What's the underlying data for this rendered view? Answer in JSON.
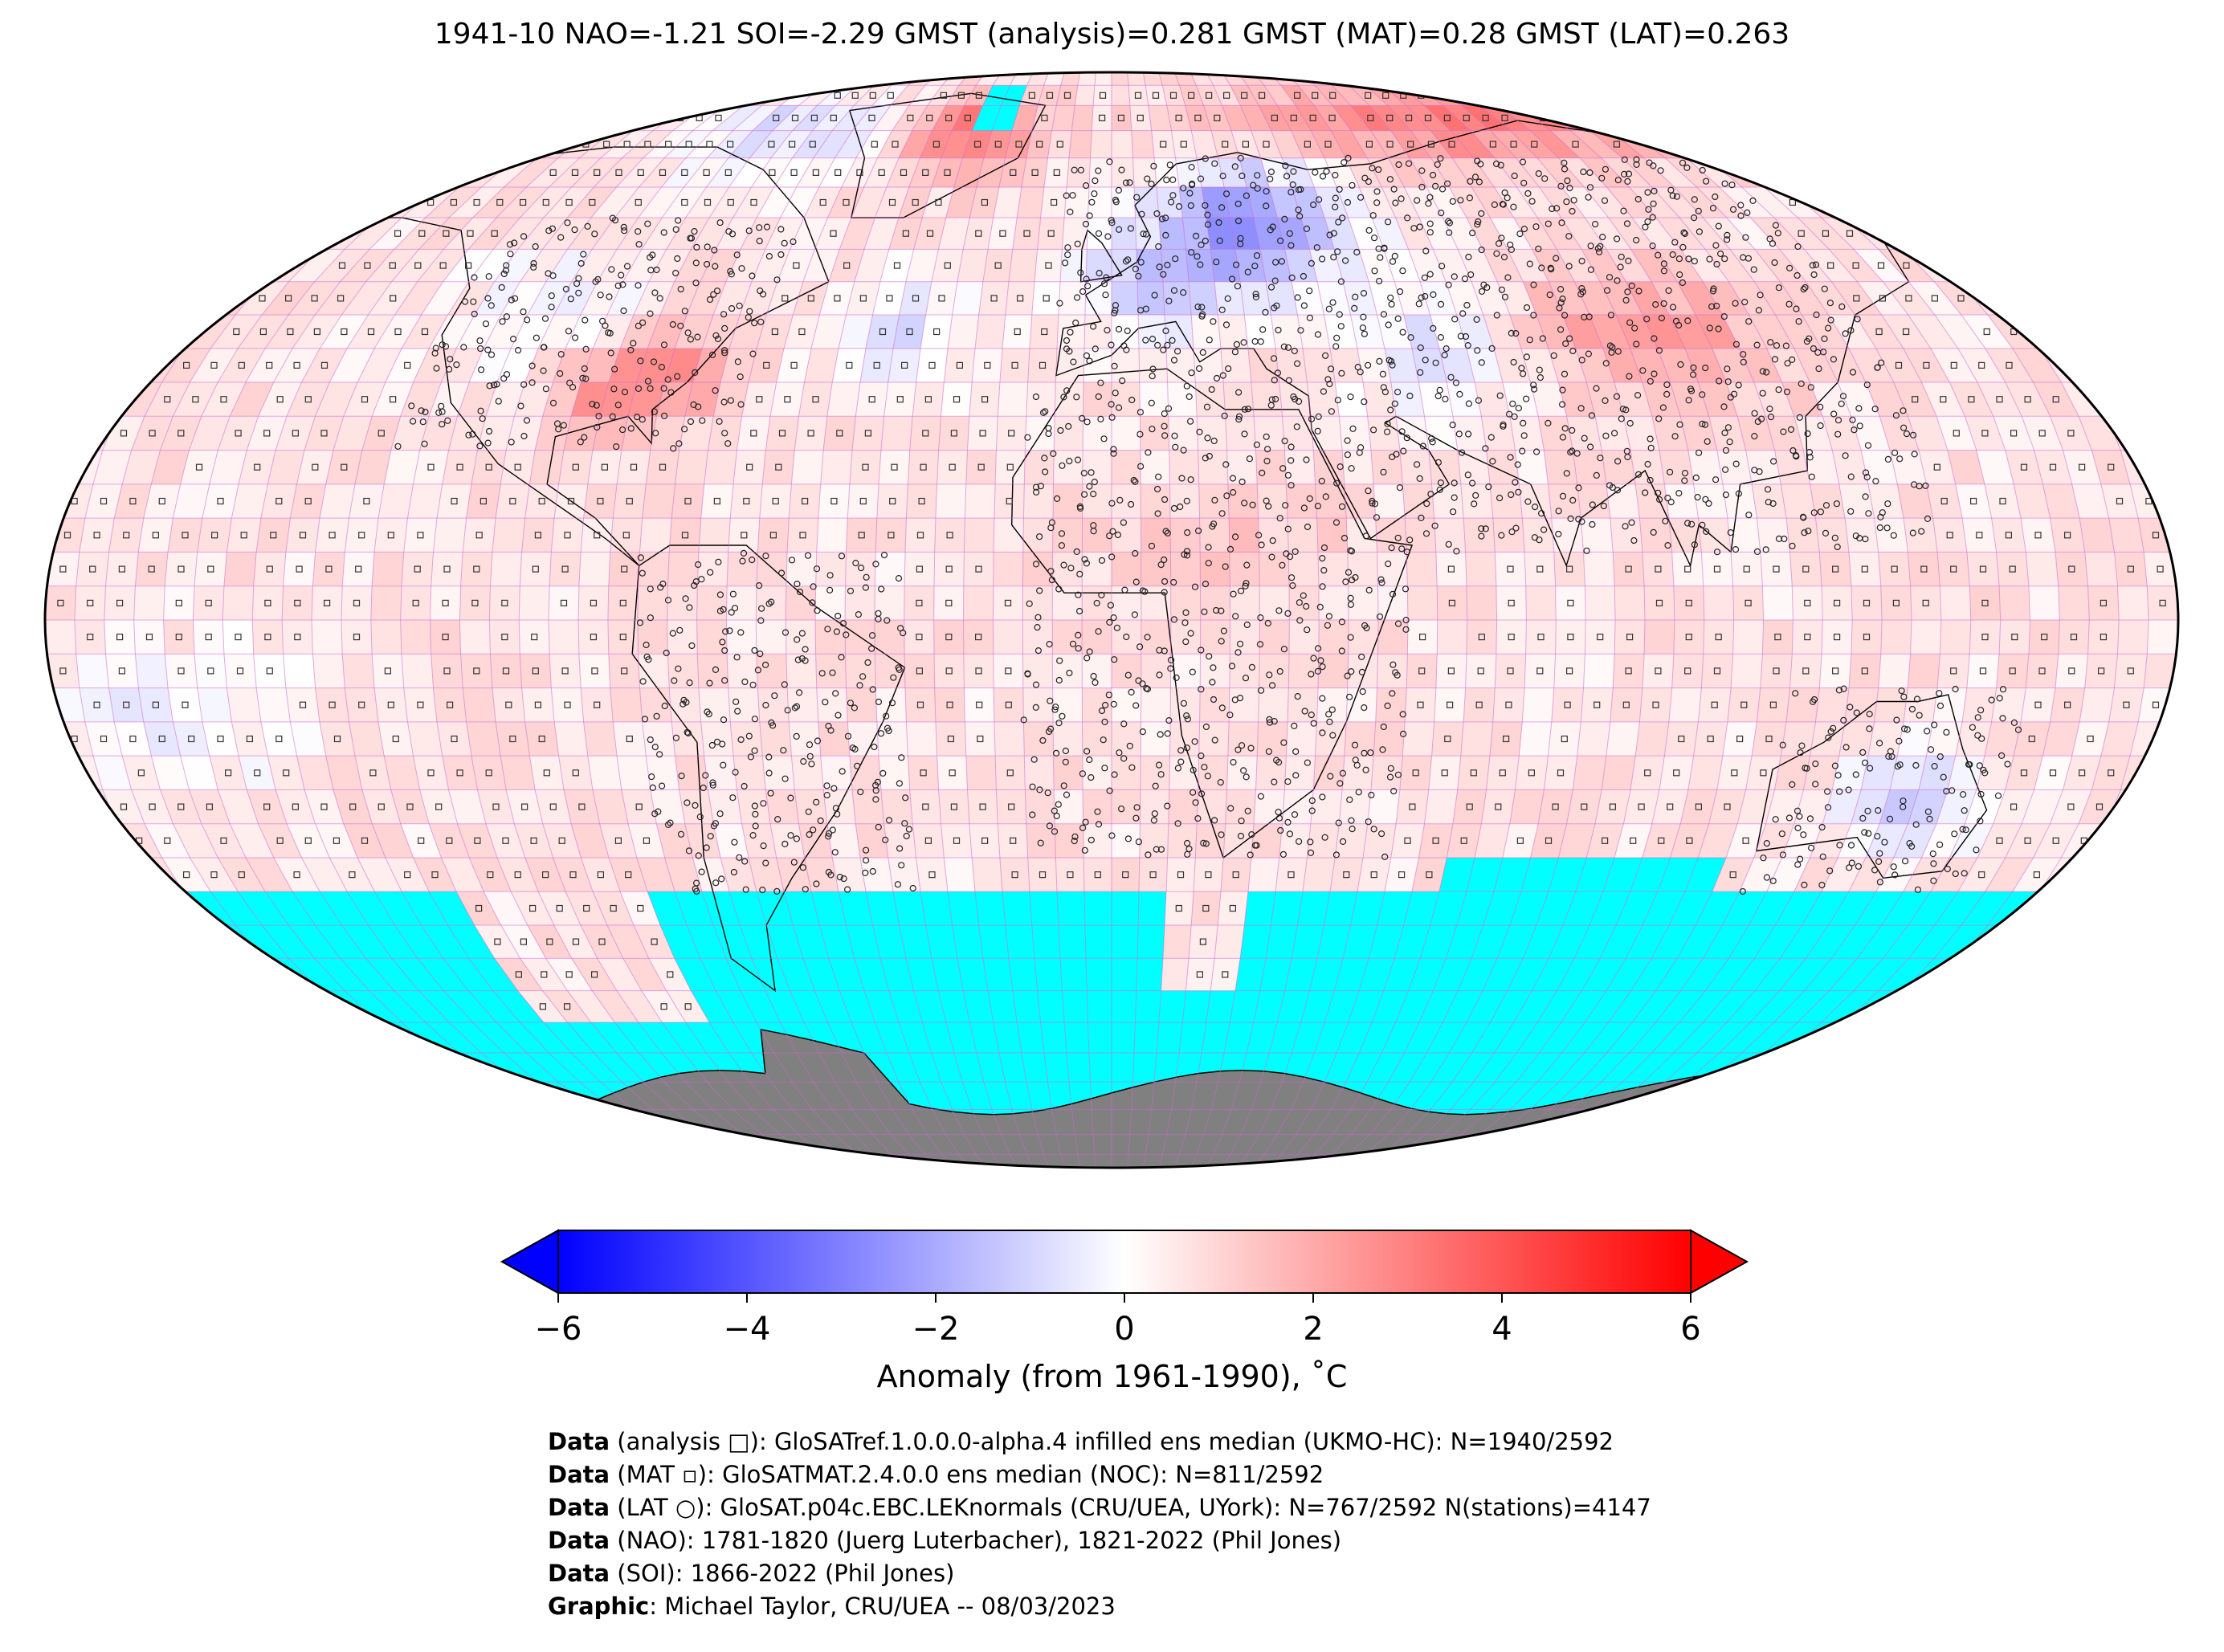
{
  "title": "1941-10 NAO=-1.21 SOI=-2.29 GMST (analysis)=0.281 GMST (MAT)=0.28 GMST (LAT)=0.263",
  "colorbar": {
    "label": "Anomaly (from 1961-1990), ˚C",
    "ticks": [
      "−6",
      "−4",
      "−2",
      "0",
      "2",
      "4",
      "6"
    ],
    "range": [
      -6,
      6
    ],
    "cmap": "bwr",
    "extend": "both",
    "colors": {
      "min": "#0000ff",
      "mid": "#ffffff",
      "max": "#ff0000"
    }
  },
  "map": {
    "projection": "Robinson",
    "grid": "5x5 degree",
    "colors": {
      "no_data": "#00ffff",
      "land_antarctica": "#808080",
      "grid_lines": "#cc66cc"
    },
    "markers": [
      "analysis square",
      "MAT square",
      "LAT circle"
    ]
  },
  "credits": [
    {
      "bold": "Data",
      "text": " (analysis □): GloSATref.1.0.0.0-alpha.4 infilled ens median (UKMO-HC): N=1940/2592"
    },
    {
      "bold": "Data",
      "text": " (MAT ▫): GloSATMAT.2.4.0.0 ens median (NOC): N=811/2592"
    },
    {
      "bold": "Data",
      "text": " (LAT ○): GloSAT.p04c.EBC.LEKnormals (CRU/UEA, UYork): N=767/2592 N(stations)=4147"
    },
    {
      "bold": "Data",
      "text": " (NAO): 1781-1820 (Juerg Luterbacher), 1821-2022 (Phil Jones)"
    },
    {
      "bold": "Data",
      "text": " (SOI): 1866-2022 (Phil Jones)"
    },
    {
      "bold": "Graphic",
      "text": ": Michael Taylor, CRU/UEA -- 08/03/2023"
    }
  ]
}
